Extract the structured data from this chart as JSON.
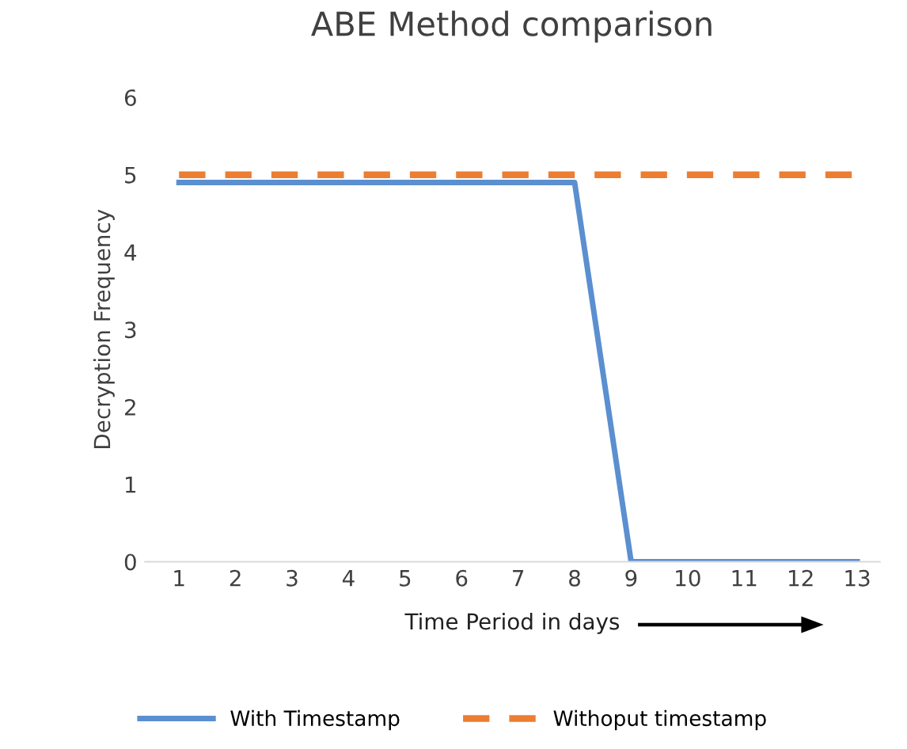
{
  "chart_data": {
    "type": "line",
    "title": "ABE Method comparison",
    "xlabel": "Time Period in days",
    "ylabel": "Decryption Frequency",
    "categories": [
      "1",
      "2",
      "3",
      "4",
      "5",
      "6",
      "7",
      "8",
      "9",
      "10",
      "11",
      "12",
      "13"
    ],
    "series": [
      {
        "name": "With Timestamp",
        "color": "#5b8fd0",
        "line_style": "solid",
        "values": [
          4.9,
          4.9,
          4.9,
          4.9,
          4.9,
          4.9,
          4.9,
          4.9,
          0,
          0,
          0,
          0,
          0
        ]
      },
      {
        "name": "Withoput timestamp",
        "color": "#ed7d31",
        "line_style": "dashed",
        "values": [
          5,
          5,
          5,
          5,
          5,
          5,
          5,
          5,
          5,
          5,
          5,
          5,
          5
        ]
      }
    ],
    "ylim": [
      0,
      6
    ],
    "yticks": [
      0,
      1,
      2,
      3,
      4,
      5,
      6
    ],
    "grid": false,
    "legend": "bottom",
    "marker": "none"
  }
}
